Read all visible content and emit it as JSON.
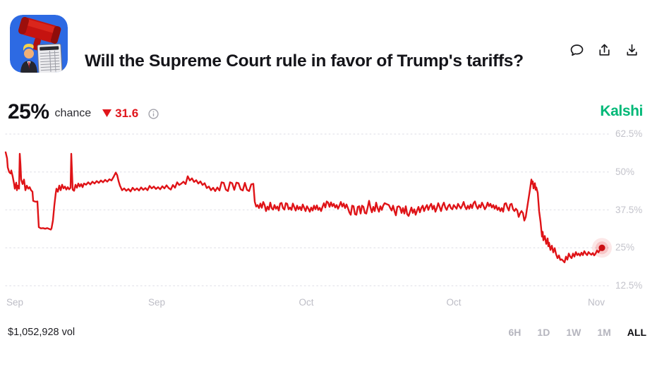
{
  "header": {
    "title": "Will the Supreme Court rule in favor of Trump's tariffs?",
    "avatar_alt": "red gavel over tariff chart with Trump",
    "actions": [
      {
        "name": "comment-icon"
      },
      {
        "name": "share-icon"
      },
      {
        "name": "download-icon"
      }
    ]
  },
  "summary": {
    "value": "25%",
    "value_label": "chance",
    "change_direction": "down",
    "change": "31.6",
    "change_color": "#e0151b",
    "brand": "Kalshi",
    "brand_color": "#00b877"
  },
  "chart_data": {
    "type": "line",
    "title": "Will the Supreme Court rule in favor of Trump's tariffs?",
    "series_name": "chance",
    "unit": "%",
    "line_color": "#df1317",
    "end_dot_color": "#cb0f14",
    "grid": true,
    "ylim": [
      12.5,
      62.5
    ],
    "y_axis": {
      "ticks": [
        {
          "label": "62.5%",
          "value": 62.5
        },
        {
          "label": "50%",
          "value": 50
        },
        {
          "label": "37.5%",
          "value": 37.5
        },
        {
          "label": "25%",
          "value": 25
        },
        {
          "label": "12.5%",
          "value": 12.5
        }
      ]
    },
    "x_axis": {
      "ticks": [
        {
          "label": "Sep",
          "px": 21
        },
        {
          "label": "Sep",
          "px": 222
        },
        {
          "label": "Oct",
          "px": 434
        },
        {
          "label": "Oct",
          "px": 643
        },
        {
          "label": "Nov",
          "px": 845
        }
      ]
    },
    "points": [
      [
        8,
        56.5
      ],
      [
        10,
        54.5
      ],
      [
        11,
        51.5
      ],
      [
        13,
        50
      ],
      [
        15,
        49.5
      ],
      [
        16,
        50.5
      ],
      [
        18,
        48.5
      ],
      [
        20,
        46
      ],
      [
        21,
        44.5
      ],
      [
        23,
        46.5
      ],
      [
        24,
        44
      ],
      [
        25,
        45.5
      ],
      [
        27,
        44.5
      ],
      [
        28,
        56
      ],
      [
        29,
        52.5
      ],
      [
        30,
        47.5
      ],
      [
        32,
        46
      ],
      [
        34,
        47.5
      ],
      [
        36,
        44
      ],
      [
        38,
        45.5
      ],
      [
        40,
        44.5
      ],
      [
        42,
        45
      ],
      [
        44,
        44
      ],
      [
        46,
        43.5
      ],
      [
        47,
        40.5
      ],
      [
        49,
        40.3
      ],
      [
        51,
        40.2
      ],
      [
        53,
        40.3
      ],
      [
        54,
        36
      ],
      [
        55,
        31.8
      ],
      [
        58,
        31.4
      ],
      [
        61,
        31.5
      ],
      [
        64,
        31.3
      ],
      [
        67,
        31.5
      ],
      [
        70,
        31.2
      ],
      [
        72,
        31
      ],
      [
        73,
        31.4
      ],
      [
        75,
        34
      ],
      [
        77,
        39
      ],
      [
        79,
        43
      ],
      [
        80,
        44.5
      ],
      [
        82,
        43.5
      ],
      [
        84,
        45.5
      ],
      [
        86,
        44
      ],
      [
        88,
        45.8
      ],
      [
        90,
        44.6
      ],
      [
        92,
        45.2
      ],
      [
        94,
        44.2
      ],
      [
        96,
        45
      ],
      [
        98,
        44.3
      ],
      [
        100,
        44.8
      ],
      [
        101,
        56
      ],
      [
        102,
        50
      ],
      [
        103,
        44.2
      ],
      [
        105,
        43.8
      ],
      [
        107,
        45.8
      ],
      [
        109,
        44.8
      ],
      [
        111,
        46.2
      ],
      [
        113,
        45.2
      ],
      [
        115,
        46
      ],
      [
        117,
        45
      ],
      [
        119,
        46.2
      ],
      [
        122,
        45.8
      ],
      [
        125,
        46.6
      ],
      [
        128,
        45.9
      ],
      [
        131,
        46.8
      ],
      [
        134,
        46.2
      ],
      [
        137,
        47
      ],
      [
        140,
        46.4
      ],
      [
        143,
        47.2
      ],
      [
        146,
        46.6
      ],
      [
        149,
        47.4
      ],
      [
        152,
        46.8
      ],
      [
        155,
        47.6
      ],
      [
        158,
        47.2
      ],
      [
        161,
        48.4
      ],
      [
        164,
        49.8
      ],
      [
        166,
        49
      ],
      [
        168,
        47
      ],
      [
        170,
        45.5
      ],
      [
        173,
        44
      ],
      [
        176,
        44.6
      ],
      [
        179,
        43.8
      ],
      [
        182,
        44.4
      ],
      [
        185,
        43.6
      ],
      [
        188,
        44.8
      ],
      [
        191,
        44
      ],
      [
        194,
        44.6
      ],
      [
        197,
        43.9
      ],
      [
        200,
        44.9
      ],
      [
        203,
        44.1
      ],
      [
        206,
        44.7
      ],
      [
        209,
        44
      ],
      [
        212,
        45.4
      ],
      [
        215,
        44.6
      ],
      [
        218,
        45.2
      ],
      [
        221,
        44.4
      ],
      [
        224,
        45
      ],
      [
        227,
        44.3
      ],
      [
        230,
        45.3
      ],
      [
        233,
        44.6
      ],
      [
        236,
        45.6
      ],
      [
        239,
        44.7
      ],
      [
        242,
        44.2
      ],
      [
        245,
        45.7
      ],
      [
        248,
        44.8
      ],
      [
        251,
        46.6
      ],
      [
        254,
        45.7
      ],
      [
        257,
        46.2
      ],
      [
        260,
        46.8
      ],
      [
        263,
        46
      ],
      [
        266,
        48.6
      ],
      [
        269,
        47.2
      ],
      [
        272,
        47.9
      ],
      [
        275,
        46.7
      ],
      [
        278,
        47.3
      ],
      [
        281,
        46.2
      ],
      [
        284,
        46.9
      ],
      [
        287,
        45.7
      ],
      [
        290,
        46.3
      ],
      [
        293,
        44.7
      ],
      [
        296,
        45.2
      ],
      [
        299,
        44
      ],
      [
        302,
        44.8
      ],
      [
        305,
        43.7
      ],
      [
        308,
        44.9
      ],
      [
        311,
        43.9
      ],
      [
        314,
        46.6
      ],
      [
        317,
        46.4
      ],
      [
        320,
        44.2
      ],
      [
        323,
        43.7
      ],
      [
        326,
        46.6
      ],
      [
        329,
        46.3
      ],
      [
        332,
        44.1
      ],
      [
        335,
        46.5
      ],
      [
        338,
        46.3
      ],
      [
        341,
        44.3
      ],
      [
        344,
        43.9
      ],
      [
        347,
        46.4
      ],
      [
        350,
        44.1
      ],
      [
        353,
        43.7
      ],
      [
        356,
        45.9
      ],
      [
        359,
        46.1
      ],
      [
        361,
        40.2
      ],
      [
        363,
        38.6
      ],
      [
        365,
        39.1
      ],
      [
        367,
        38.1
      ],
      [
        369,
        39.6
      ],
      [
        371,
        38.2
      ],
      [
        373,
        40.1
      ],
      [
        375,
        39.1
      ],
      [
        377,
        37.1
      ],
      [
        379,
        38.6
      ],
      [
        381,
        37.6
      ],
      [
        383,
        39.9
      ],
      [
        385,
        38.1
      ],
      [
        387,
        37.6
      ],
      [
        389,
        39.1
      ],
      [
        391,
        37.9
      ],
      [
        393,
        38.6
      ],
      [
        395,
        37.3
      ],
      [
        397,
        39.6
      ],
      [
        399,
        39.8
      ],
      [
        401,
        38.1
      ],
      [
        403,
        37.6
      ],
      [
        405,
        39.7
      ],
      [
        407,
        39.5
      ],
      [
        409,
        37.7
      ],
      [
        411,
        38.3
      ],
      [
        413,
        37.5
      ],
      [
        415,
        39.6
      ],
      [
        417,
        38.4
      ],
      [
        419,
        37.3
      ],
      [
        421,
        38.9
      ],
      [
        423,
        37.7
      ],
      [
        425,
        38.5
      ],
      [
        427,
        37.4
      ],
      [
        429,
        39.3
      ],
      [
        431,
        38.2
      ],
      [
        433,
        37.1
      ],
      [
        435,
        38.7
      ],
      [
        437,
        37.9
      ],
      [
        439,
        36.9
      ],
      [
        441,
        38.3
      ],
      [
        443,
        37.3
      ],
      [
        445,
        38.9
      ],
      [
        447,
        37.7
      ],
      [
        449,
        39
      ],
      [
        451,
        37.5
      ],
      [
        453,
        38.2
      ],
      [
        455,
        37.1
      ],
      [
        457,
        38.5
      ],
      [
        459,
        39.7
      ],
      [
        461,
        38.3
      ],
      [
        463,
        40.3
      ],
      [
        465,
        39.9
      ],
      [
        467,
        38.5
      ],
      [
        469,
        40
      ],
      [
        471,
        38.7
      ],
      [
        473,
        39.5
      ],
      [
        475,
        38.3
      ],
      [
        477,
        39.1
      ],
      [
        479,
        37.9
      ],
      [
        481,
        38.9
      ],
      [
        483,
        40.1
      ],
      [
        485,
        38.6
      ],
      [
        487,
        39.6
      ],
      [
        489,
        38.1
      ],
      [
        491,
        39.3
      ],
      [
        493,
        38.1
      ],
      [
        495,
        36.7
      ],
      [
        497,
        35.9
      ],
      [
        499,
        38.9
      ],
      [
        501,
        38.7
      ],
      [
        503,
        36.1
      ],
      [
        505,
        35.9
      ],
      [
        507,
        38.5
      ],
      [
        509,
        38.7
      ],
      [
        511,
        36.3
      ],
      [
        513,
        38.9
      ],
      [
        515,
        38.5
      ],
      [
        517,
        36.5
      ],
      [
        519,
        36.3
      ],
      [
        521,
        38.3
      ],
      [
        523,
        40.5
      ],
      [
        525,
        38.3
      ],
      [
        527,
        36.7
      ],
      [
        529,
        38.5
      ],
      [
        531,
        37.1
      ],
      [
        533,
        39.9
      ],
      [
        535,
        38.1
      ],
      [
        537,
        36.9
      ],
      [
        539,
        38.7
      ],
      [
        541,
        37.5
      ],
      [
        543,
        38.9
      ],
      [
        545,
        39.7
      ],
      [
        547,
        39.5
      ],
      [
        549,
        39.3
      ],
      [
        551,
        39.1
      ],
      [
        553,
        38.1
      ],
      [
        555,
        37.3
      ],
      [
        557,
        38.9
      ],
      [
        559,
        37.1
      ],
      [
        561,
        35.7
      ],
      [
        563,
        38.5
      ],
      [
        565,
        38.7
      ],
      [
        567,
        38.3
      ],
      [
        569,
        36.5
      ],
      [
        571,
        38.1
      ],
      [
        573,
        36.3
      ],
      [
        575,
        38.7
      ],
      [
        577,
        36.1
      ],
      [
        579,
        35.5
      ],
      [
        581,
        36.9
      ],
      [
        583,
        38.3
      ],
      [
        585,
        36.5
      ],
      [
        587,
        37.7
      ],
      [
        589,
        35.9
      ],
      [
        591,
        37.3
      ],
      [
        593,
        38.5
      ],
      [
        595,
        36.7
      ],
      [
        597,
        38.1
      ],
      [
        599,
        38.9
      ],
      [
        601,
        37.1
      ],
      [
        603,
        38.3
      ],
      [
        605,
        39.1
      ],
      [
        607,
        37.5
      ],
      [
        609,
        38.7
      ],
      [
        611,
        39.5
      ],
      [
        613,
        37.7
      ],
      [
        615,
        38.9
      ],
      [
        617,
        36.9
      ],
      [
        619,
        38.1
      ],
      [
        621,
        39.7
      ],
      [
        623,
        38.5
      ],
      [
        625,
        37.1
      ],
      [
        627,
        38.9
      ],
      [
        629,
        39.9
      ],
      [
        631,
        38.3
      ],
      [
        633,
        37.5
      ],
      [
        635,
        38.7
      ],
      [
        637,
        39.3
      ],
      [
        639,
        38.1
      ],
      [
        641,
        37.7
      ],
      [
        643,
        39.1
      ],
      [
        645,
        38.5
      ],
      [
        647,
        37.9
      ],
      [
        649,
        39.5
      ],
      [
        651,
        38.7
      ],
      [
        653,
        38
      ],
      [
        655,
        38.9
      ],
      [
        657,
        40.1
      ],
      [
        659,
        38.5
      ],
      [
        661,
        37.7
      ],
      [
        663,
        38.9
      ],
      [
        665,
        37.9
      ],
      [
        667,
        39.3
      ],
      [
        669,
        38.1
      ],
      [
        671,
        39.7
      ],
      [
        673,
        40.3
      ],
      [
        675,
        38.7
      ],
      [
        677,
        37.9
      ],
      [
        679,
        39.1
      ],
      [
        681,
        38.3
      ],
      [
        683,
        39.9
      ],
      [
        685,
        38.9
      ],
      [
        687,
        37.7
      ],
      [
        689,
        38.5
      ],
      [
        691,
        39.9
      ],
      [
        693,
        38.7
      ],
      [
        695,
        39.5
      ],
      [
        697,
        38.3
      ],
      [
        699,
        39.1
      ],
      [
        701,
        37.9
      ],
      [
        703,
        38.9
      ],
      [
        705,
        37.5
      ],
      [
        707,
        38.3
      ],
      [
        709,
        37.1
      ],
      [
        711,
        38.1
      ],
      [
        713,
        36.9
      ],
      [
        715,
        39.5
      ],
      [
        717,
        39.7
      ],
      [
        719,
        38.3
      ],
      [
        721,
        37.3
      ],
      [
        723,
        39.3
      ],
      [
        725,
        39.5
      ],
      [
        727,
        37.7
      ],
      [
        729,
        37.1
      ],
      [
        731,
        37.9
      ],
      [
        733,
        37.3
      ],
      [
        735,
        35.2
      ],
      [
        737,
        36.4
      ],
      [
        739,
        37.1
      ],
      [
        741,
        36.5
      ],
      [
        743,
        34
      ],
      [
        745,
        35.2
      ],
      [
        747,
        38.2
      ],
      [
        749,
        41.2
      ],
      [
        751,
        44.2
      ],
      [
        753,
        47.5
      ],
      [
        754,
        46.1
      ],
      [
        755,
        46.9
      ],
      [
        756,
        44.6
      ],
      [
        757,
        45.6
      ],
      [
        758,
        46.3
      ],
      [
        759,
        44.1
      ],
      [
        760,
        44.9
      ],
      [
        762,
        43.1
      ],
      [
        764,
        37
      ],
      [
        766,
        33.5
      ],
      [
        768,
        28.7
      ],
      [
        769,
        30.3
      ],
      [
        770,
        27.5
      ],
      [
        772,
        28.9
      ],
      [
        774,
        26.3
      ],
      [
        776,
        28.1
      ],
      [
        777,
        25.5
      ],
      [
        778,
        26.7
      ],
      [
        780,
        24.3
      ],
      [
        782,
        25.7
      ],
      [
        784,
        23.5
      ],
      [
        786,
        24.9
      ],
      [
        788,
        22.9
      ],
      [
        790,
        21.6
      ],
      [
        792,
        22.5
      ],
      [
        794,
        21
      ],
      [
        796,
        21.2
      ],
      [
        798,
        20.7
      ],
      [
        800,
        20.2
      ],
      [
        802,
        22.1
      ],
      [
        804,
        21.1
      ],
      [
        806,
        23.1
      ],
      [
        808,
        22.1
      ],
      [
        810,
        21.6
      ],
      [
        812,
        23.1
      ],
      [
        814,
        22.1
      ],
      [
        816,
        23.6
      ],
      [
        818,
        22.6
      ],
      [
        820,
        23.1
      ],
      [
        822,
        22.4
      ],
      [
        824,
        23.4
      ],
      [
        826,
        22.6
      ],
      [
        828,
        23.9
      ],
      [
        830,
        23.1
      ],
      [
        832,
        22.6
      ],
      [
        834,
        23.6
      ],
      [
        836,
        23.1
      ],
      [
        838,
        22.7
      ],
      [
        840,
        23.3
      ],
      [
        842,
        22.5
      ],
      [
        844,
        23.1
      ],
      [
        846,
        24.1
      ],
      [
        848,
        23.5
      ],
      [
        850,
        24.3
      ],
      [
        853,
        25
      ]
    ],
    "end_dot": {
      "x": 853,
      "value": 25
    }
  },
  "footer": {
    "volume": "$1,052,928 vol",
    "ranges": [
      "6H",
      "1D",
      "1W",
      "1M",
      "ALL"
    ],
    "selected_range": "ALL"
  }
}
